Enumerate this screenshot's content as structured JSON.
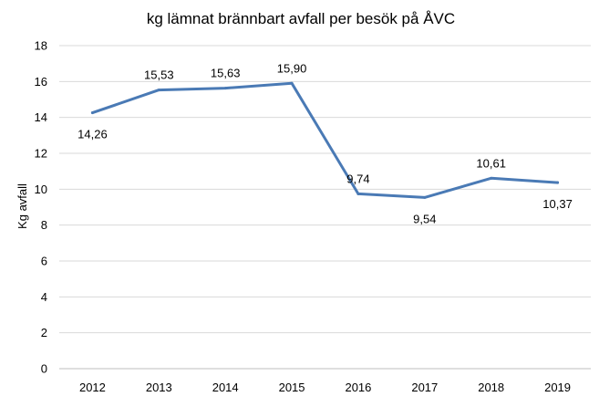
{
  "chart_data": {
    "type": "line",
    "title": "kg lämnat brännbart avfall per besök på ÅVC",
    "xlabel": "",
    "ylabel": "Kg avfall",
    "categories": [
      "2012",
      "2013",
      "2014",
      "2015",
      "2016",
      "2017",
      "2018",
      "2019"
    ],
    "series": [
      {
        "values": [
          14.26,
          15.53,
          15.63,
          15.9,
          9.74,
          9.54,
          10.61,
          10.37
        ],
        "labels": [
          "14,26",
          "15,53",
          "15,63",
          "15,90",
          "9,74",
          "9,54",
          "10,61",
          "10,37"
        ],
        "label_position": [
          "below",
          "above",
          "above",
          "above",
          "above",
          "below",
          "above",
          "below"
        ]
      }
    ],
    "ylim": [
      0,
      18
    ],
    "yticks": [
      0,
      2,
      4,
      6,
      8,
      10,
      12,
      14,
      16,
      18
    ],
    "grid": true,
    "legend": "none",
    "colors": {
      "line": "#4a7ab5",
      "grid": "#d9d9d9",
      "axis": "#bfbfbf"
    }
  }
}
